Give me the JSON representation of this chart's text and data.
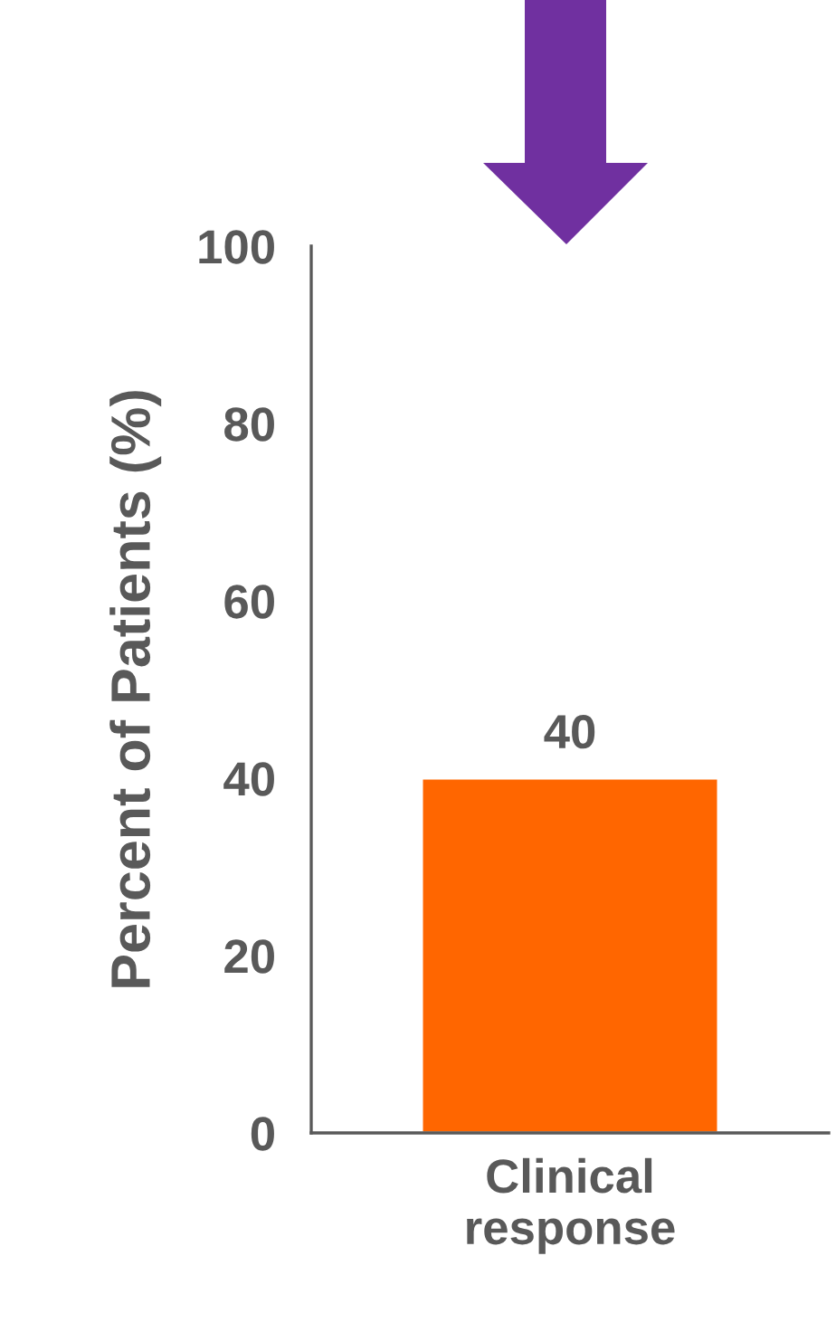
{
  "chart_data": {
    "type": "bar",
    "ylabel": "Percent of Patients (%)",
    "categories": [
      "Clinical\nresponse"
    ],
    "values": [
      40
    ],
    "color": "#ff6600",
    "ylim": [
      0,
      100
    ],
    "yticks": [
      0,
      20,
      40,
      60,
      80,
      100
    ],
    "grid": false,
    "data_labels": true
  }
}
